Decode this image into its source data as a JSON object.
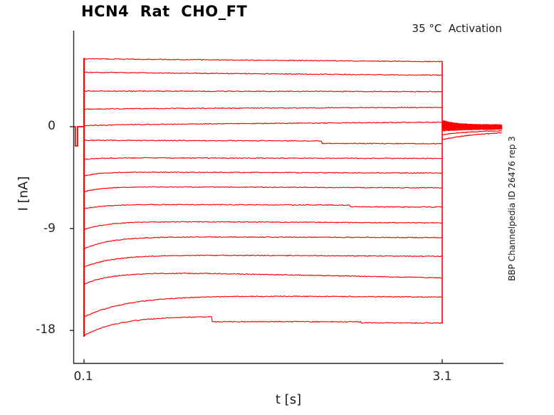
{
  "header": {
    "title": "HCN4  Rat  CHO_FT",
    "subtitle": "35 °C  Activation"
  },
  "side_note": "BBP Channelpedia ID 26476 rep 3",
  "chart_data": {
    "type": "line",
    "title": "HCN4  Rat  CHO_FT",
    "subtitle": "35 °C  Activation",
    "xlabel": "t [s]",
    "ylabel": "I [nA]",
    "xticks": [
      {
        "value": 0.1,
        "label": "0.1"
      },
      {
        "value": 3.1,
        "label": "3.1"
      }
    ],
    "yticks": [
      {
        "value": 0,
        "label": "0"
      },
      {
        "value": -9,
        "label": "-9"
      },
      {
        "value": -18,
        "label": "-18"
      }
    ],
    "xlim": [
      0.0,
      3.62
    ],
    "ylim": [
      -21.0,
      8.5
    ],
    "grid": false,
    "legend": "none",
    "trace_color": "#ff0000",
    "axis_color": "#262626",
    "step_window_s": [
      0.1,
      3.1
    ],
    "baseline": {
      "level_nA": 0.0,
      "t_start_s": 0.016,
      "spike_t_s": [
        0.027,
        0.046
      ],
      "spike_nA": -1.7
    },
    "traces": [
      {
        "start_nA": 6.0,
        "plateau_nA": 6.0,
        "end_nA": 5.75,
        "tau_s": 0.3,
        "steps": []
      },
      {
        "start_nA": 4.8,
        "plateau_nA": 4.8,
        "end_nA": 4.55,
        "tau_s": 0.3,
        "steps": []
      },
      {
        "start_nA": 3.15,
        "plateau_nA": 3.15,
        "end_nA": 3.1,
        "tau_s": 0.3,
        "steps": []
      },
      {
        "start_nA": 1.55,
        "plateau_nA": 1.6,
        "end_nA": 1.7,
        "tau_s": 0.4,
        "steps": []
      },
      {
        "start_nA": 0.1,
        "plateau_nA": 0.2,
        "end_nA": 0.4,
        "tau_s": 0.6,
        "steps": []
      },
      {
        "start_nA": -1.2,
        "plateau_nA": -1.2,
        "end_nA": -1.5,
        "tau_s": 0.15,
        "steps": [
          {
            "t_s": 2.09,
            "delta_nA": -0.22
          }
        ]
      },
      {
        "start_nA": -2.9,
        "plateau_nA": -2.75,
        "end_nA": -2.8,
        "tau_s": 0.12,
        "steps": []
      },
      {
        "start_nA": -4.35,
        "plateau_nA": -4.0,
        "end_nA": -4.1,
        "tau_s": 0.13,
        "steps": []
      },
      {
        "start_nA": -5.75,
        "plateau_nA": -5.3,
        "end_nA": -5.4,
        "tau_s": 0.15,
        "steps": []
      },
      {
        "start_nA": -7.25,
        "plateau_nA": -6.85,
        "end_nA": -7.1,
        "tau_s": 0.18,
        "steps": [
          {
            "t_s": 2.33,
            "delta_nA": -0.15
          }
        ]
      },
      {
        "start_nA": -9.1,
        "plateau_nA": -8.35,
        "end_nA": -8.5,
        "tau_s": 0.2,
        "steps": []
      },
      {
        "start_nA": -10.8,
        "plateau_nA": -9.7,
        "end_nA": -9.8,
        "tau_s": 0.22,
        "steps": []
      },
      {
        "start_nA": -12.4,
        "plateau_nA": -11.3,
        "end_nA": -11.45,
        "tau_s": 0.25,
        "steps": []
      },
      {
        "start_nA": -13.9,
        "plateau_nA": -12.75,
        "end_nA": -13.35,
        "tau_s": 0.25,
        "steps": []
      },
      {
        "start_nA": -16.8,
        "plateau_nA": -14.85,
        "end_nA": -15.05,
        "tau_s": 0.38,
        "steps": []
      },
      {
        "start_nA": -18.45,
        "plateau_nA": -16.7,
        "end_nA": -17.35,
        "tau_s": 0.3,
        "steps": [
          {
            "t_s": 1.17,
            "delta_nA": -0.45
          },
          {
            "t_s": 2.42,
            "delta_nA": -0.08
          }
        ]
      }
    ],
    "tail": {
      "window_s": [
        3.1,
        3.6
      ],
      "band_start_nA": [
        0.55,
        0.45,
        0.36,
        0.28,
        0.2,
        0.13,
        0.06,
        0.0,
        -0.07,
        -0.15,
        -0.24,
        -0.35
      ],
      "band_end_nA": [
        0.15,
        0.12,
        0.09,
        0.06,
        0.03,
        0.0,
        -0.03,
        -0.06,
        -0.1,
        -0.13,
        -0.16,
        -0.2
      ],
      "band_tau_s": 0.14,
      "discrete": [
        {
          "start_nA": -0.72,
          "end_nA": -0.3,
          "tau_s": 0.25
        },
        {
          "start_nA": -1.15,
          "end_nA": -0.38,
          "tau_s": 0.32
        }
      ]
    }
  }
}
